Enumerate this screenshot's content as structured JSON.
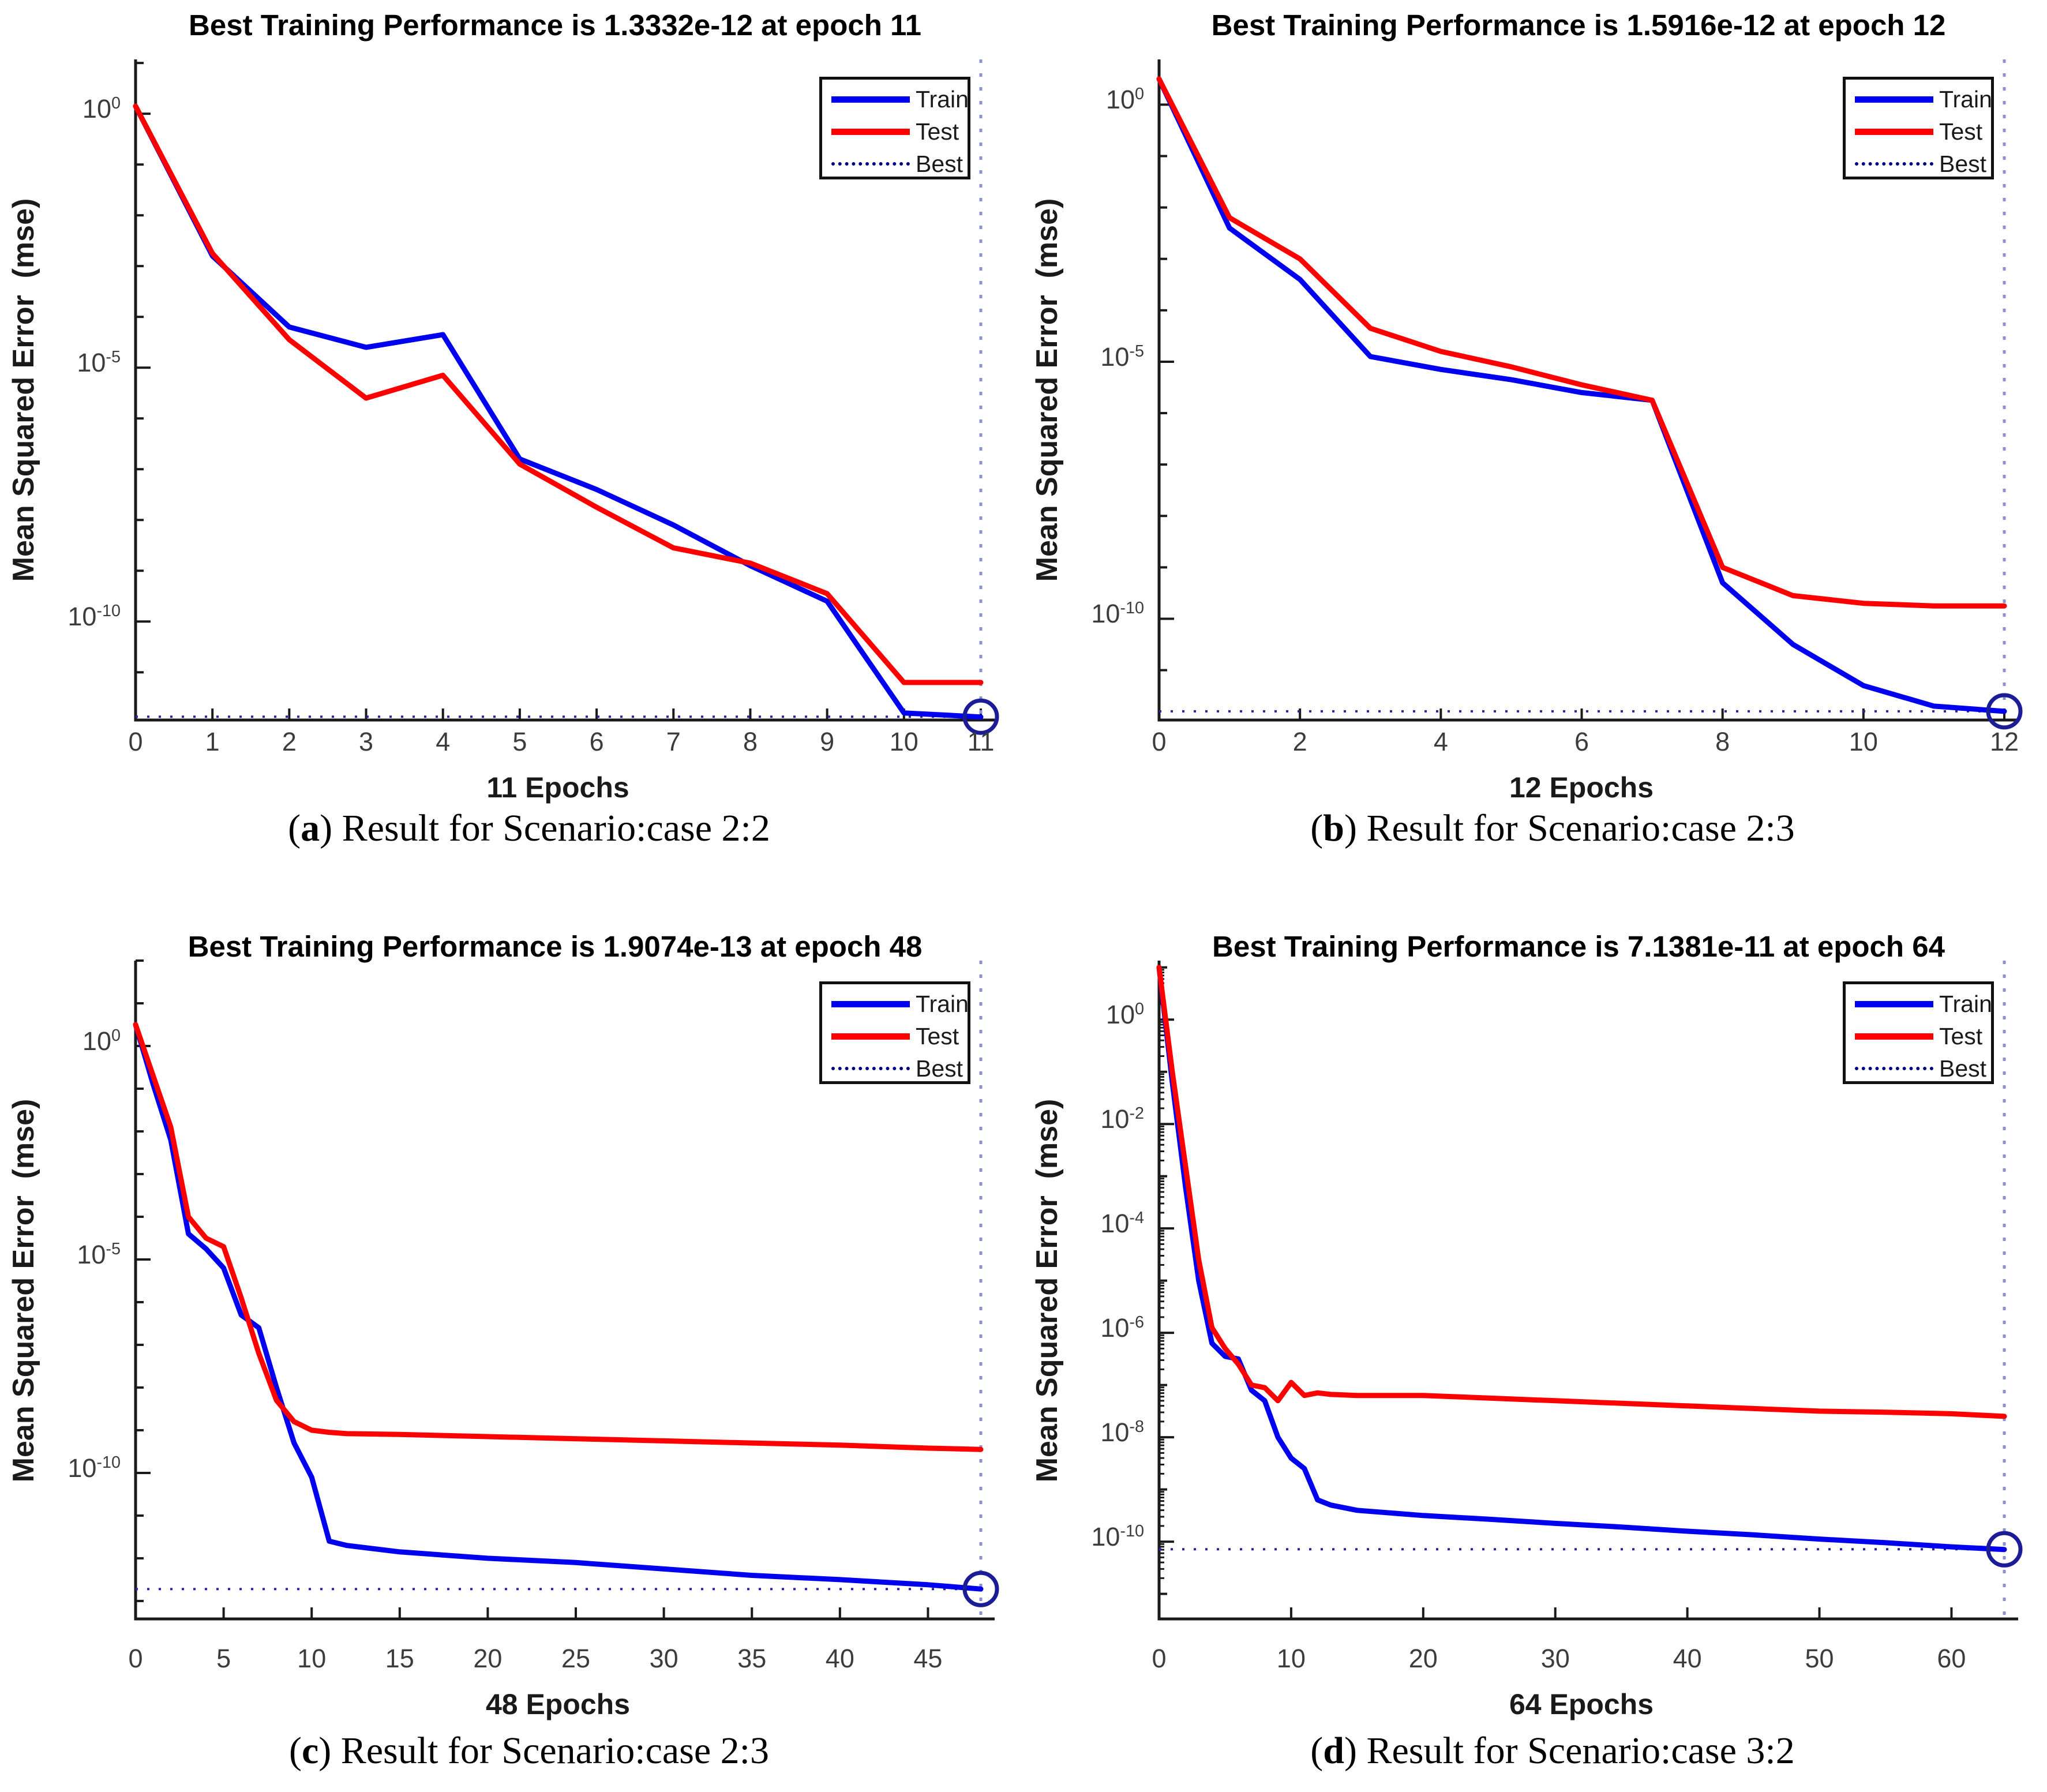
{
  "colors": {
    "train": "#0000f0",
    "test": "#ff0000",
    "best_legend": "#00008b",
    "best_hline": "#2525a8",
    "best_vline": "#8a90d2",
    "end_marker": "#1c1c96",
    "axis": "#1a1a1a",
    "tick_text": "#3c3c3c"
  },
  "panels": [
    {
      "caption": {
        "open": "(",
        "letter": "a",
        "rest": ") Result for Scenario:case 2:2"
      },
      "legend": [
        "Train",
        "Test",
        "Best"
      ]
    },
    {
      "caption": {
        "open": "(",
        "letter": "b",
        "rest": ") Result for Scenario:case 2:3"
      },
      "legend": [
        "Train",
        "Test",
        "Best"
      ]
    },
    {
      "caption": {
        "open": "(",
        "letter": "c",
        "rest": ") Result for Scenario:case 2:3"
      },
      "legend": [
        "Train",
        "Test",
        "Best"
      ]
    },
    {
      "caption": {
        "open": "(",
        "letter": "d",
        "rest": ") Result for Scenario:case 3:2"
      },
      "legend": [
        "Train",
        "Test",
        "Best"
      ]
    }
  ],
  "chart_data": [
    {
      "type": "line",
      "title": "Best Training Performance is 1.3332e-12 at epoch 11",
      "xlabel": "11 Epochs",
      "ylabel": "Mean Squared Error  (mse)",
      "yscale": "log",
      "legend_position": "upper right",
      "x": [
        0,
        1,
        2,
        3,
        4,
        5,
        6,
        7,
        8,
        9,
        10,
        11
      ],
      "series": [
        {
          "name": "Train",
          "log10_mse": [
            0.15,
            -2.8,
            -4.2,
            -4.6,
            -4.35,
            -6.8,
            -7.4,
            -8.1,
            -8.9,
            -9.6,
            -11.8,
            -11.88
          ]
        },
        {
          "name": "Test",
          "log10_mse": [
            0.15,
            -2.75,
            -4.45,
            -5.6,
            -5.15,
            -6.9,
            -7.75,
            -8.55,
            -8.85,
            -9.45,
            -11.2,
            -11.2
          ]
        }
      ],
      "xlim": [
        0,
        11
      ],
      "ylim_log10": [
        -11.94,
        1.07
      ],
      "xticks": [
        0,
        1,
        2,
        3,
        4,
        5,
        6,
        7,
        8,
        9,
        10,
        11
      ],
      "ytick_exponents": [
        0,
        -5,
        -10
      ],
      "minor_log_ticks": false,
      "best": {
        "value_text": "1.3332e-12",
        "log10": -11.875,
        "epoch": 11
      }
    },
    {
      "type": "line",
      "title": "Best Training Performance is 1.5916e-12 at epoch 12",
      "xlabel": "12 Epochs",
      "ylabel": "Mean Squared Error  (mse)",
      "yscale": "log",
      "legend_position": "upper right",
      "x": [
        0,
        1,
        2,
        3,
        4,
        5,
        6,
        7,
        8,
        9,
        10,
        11,
        12
      ],
      "series": [
        {
          "name": "Train",
          "log10_mse": [
            0.5,
            -2.4,
            -3.4,
            -4.9,
            -5.15,
            -5.35,
            -5.6,
            -5.75,
            -9.3,
            -10.5,
            -11.3,
            -11.7,
            -11.8
          ]
        },
        {
          "name": "Test",
          "log10_mse": [
            0.5,
            -2.2,
            -3.0,
            -4.35,
            -4.8,
            -5.1,
            -5.45,
            -5.75,
            -9.0,
            -9.55,
            -9.7,
            -9.75,
            -9.75
          ]
        }
      ],
      "xlim": [
        0,
        12
      ],
      "ylim_log10": [
        -11.97,
        0.88
      ],
      "xticks": [
        0,
        2,
        4,
        6,
        8,
        10,
        12
      ],
      "ytick_exponents": [
        0,
        -5,
        -10
      ],
      "minor_log_ticks": false,
      "best": {
        "value_text": "1.5916e-12",
        "log10": -11.8,
        "epoch": 12
      }
    },
    {
      "type": "line",
      "title": "Best Training Performance is 1.9074e-13 at epoch 48",
      "xlabel": "48 Epochs",
      "ylabel": "Mean Squared Error  (mse)",
      "yscale": "log",
      "legend_position": "upper right",
      "x": [
        0,
        1,
        2,
        3,
        4,
        5,
        6,
        7,
        8,
        9,
        10,
        11,
        12,
        15,
        20,
        25,
        30,
        35,
        40,
        45,
        48
      ],
      "series": [
        {
          "name": "Train",
          "log10_mse": [
            0.5,
            -0.9,
            -2.2,
            -4.4,
            -4.75,
            -5.2,
            -6.3,
            -6.6,
            -8.0,
            -9.3,
            -10.1,
            -11.6,
            -11.7,
            -11.85,
            -12.0,
            -12.1,
            -12.25,
            -12.4,
            -12.5,
            -12.62,
            -12.72
          ]
        },
        {
          "name": "Test",
          "log10_mse": [
            0.5,
            -0.7,
            -1.9,
            -4.0,
            -4.5,
            -4.7,
            -5.9,
            -7.2,
            -8.3,
            -8.8,
            -9.0,
            -9.05,
            -9.08,
            -9.1,
            -9.15,
            -9.2,
            -9.25,
            -9.3,
            -9.35,
            -9.42,
            -9.45
          ]
        }
      ],
      "xlim": [
        0,
        48
      ],
      "ylim_log10": [
        -13.42,
        2.0
      ],
      "xticks": [
        0,
        5,
        10,
        15,
        20,
        25,
        30,
        35,
        40,
        45
      ],
      "ytick_exponents": [
        0,
        -5,
        -10
      ],
      "minor_log_ticks": false,
      "best": {
        "value_text": "1.9074e-13",
        "log10": -12.72,
        "epoch": 48
      }
    },
    {
      "type": "line",
      "title": "Best Training Performance is 7.1381e-11 at epoch 64",
      "xlabel": "64 Epochs",
      "ylabel": "Mean Squared Error  (mse)",
      "yscale": "log",
      "legend_position": "upper right",
      "x": [
        0,
        1,
        2,
        3,
        4,
        5,
        6,
        7,
        8,
        9,
        10,
        11,
        12,
        13,
        15,
        20,
        25,
        30,
        35,
        40,
        45,
        50,
        55,
        60,
        64
      ],
      "series": [
        {
          "name": "Train",
          "log10_mse": [
            1.0,
            -1.2,
            -3.2,
            -5.0,
            -6.2,
            -6.45,
            -6.5,
            -7.1,
            -7.3,
            -8.0,
            -8.4,
            -8.6,
            -9.2,
            -9.3,
            -9.4,
            -9.5,
            -9.57,
            -9.65,
            -9.72,
            -9.8,
            -9.87,
            -9.95,
            -10.02,
            -10.1,
            -10.15
          ]
        },
        {
          "name": "Test",
          "log10_mse": [
            1.0,
            -1.0,
            -2.8,
            -4.6,
            -5.9,
            -6.3,
            -6.6,
            -7.0,
            -7.05,
            -7.3,
            -6.95,
            -7.2,
            -7.15,
            -7.18,
            -7.2,
            -7.2,
            -7.25,
            -7.3,
            -7.35,
            -7.4,
            -7.45,
            -7.5,
            -7.52,
            -7.55,
            -7.6
          ]
        }
      ],
      "xlim": [
        0,
        64
      ],
      "ylim_log10": [
        -11.48,
        1.13
      ],
      "xticks": [
        0,
        10,
        20,
        30,
        40,
        50,
        60
      ],
      "ytick_exponents": [
        0,
        -2,
        -4,
        -6,
        -8,
        -10
      ],
      "minor_log_ticks": true,
      "best": {
        "value_text": "7.1381e-11",
        "log10": -10.146,
        "epoch": 64
      }
    }
  ]
}
